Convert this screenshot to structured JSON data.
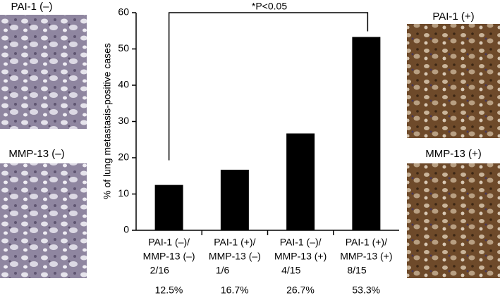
{
  "chart_data": {
    "type": "bar",
    "annotation": "*P<0.05",
    "y_label": "% of lung metastasis-positive cases",
    "categories": [
      [
        "PAI-1 (–)/",
        "MMP-13 (–)"
      ],
      [
        "PAI-1 (+)/",
        "MMP-13 (–)"
      ],
      [
        "PAI-1 (–)/",
        "MMP-13 (+)"
      ],
      [
        "PAI-1 (+)/",
        "MMP-13 (+)"
      ]
    ],
    "fractions": [
      "2/16",
      "1/6",
      "4/15",
      "8/15"
    ],
    "values": [
      12.5,
      16.7,
      26.7,
      53.3
    ],
    "value_labels": [
      "12.5%",
      "16.7%",
      "26.7%",
      "53.3%"
    ],
    "color": "#000000",
    "ylim": [
      0,
      60
    ],
    "yticks": [
      0,
      10,
      20,
      30,
      40,
      50,
      60
    ],
    "grid": false
  },
  "panels": [
    "PAI-1 (–)",
    "MMP-13 (–)",
    "PAI-1 (+)",
    "MMP-13 (+)"
  ]
}
